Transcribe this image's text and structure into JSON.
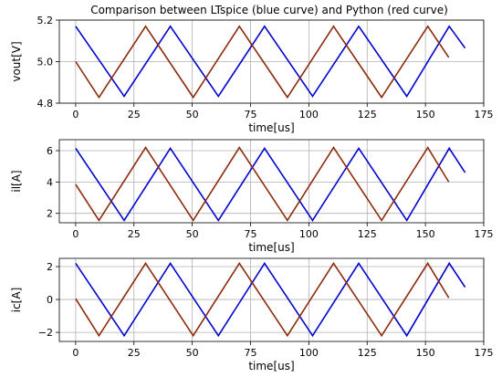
{
  "colors": {
    "ltspice": "#0000cc",
    "python": "#8b2a0a",
    "python_peak": "#d42020"
  },
  "chart_data": [
    {
      "type": "line",
      "title": "Comparison between LTspice (blue curve) and Python (red curve)",
      "xlabel": "time[us]",
      "ylabel": "vout[V]",
      "xlim": [
        -7,
        175
      ],
      "ylim": [
        4.8,
        5.2
      ],
      "xticks": [
        0,
        25,
        50,
        75,
        100,
        125,
        150,
        175
      ],
      "xtick_labels": [
        "0",
        "25",
        "50",
        "75",
        "100",
        "125",
        "150",
        "175"
      ],
      "yticks": [
        4.8,
        5.0,
        5.2
      ],
      "ytick_labels": [
        "4.8",
        "5.0",
        "5.2"
      ],
      "grid": true,
      "series": [
        {
          "color": "#0000cc",
          "x": [
            0,
            20.8,
            40.6,
            61.2,
            81,
            101.6,
            121.4,
            142,
            160.2,
            167
          ],
          "y": [
            5.17,
            4.833,
            5.17,
            4.833,
            5.17,
            4.833,
            5.17,
            4.833,
            5.17,
            5.065
          ]
        },
        {
          "color": "#8b2a0a",
          "x": [
            0,
            10,
            30,
            50.4,
            70.2,
            90.8,
            110.6,
            131.2,
            151,
            160
          ],
          "y": [
            5.0,
            4.828,
            5.17,
            4.828,
            5.17,
            4.828,
            5.17,
            4.828,
            5.17,
            5.02
          ]
        }
      ]
    },
    {
      "type": "line",
      "xlabel": "time[us]",
      "ylabel": "il[A]",
      "xlim": [
        -7,
        175
      ],
      "ylim": [
        1.4,
        6.7
      ],
      "xticks": [
        0,
        25,
        50,
        75,
        100,
        125,
        150,
        175
      ],
      "xtick_labels": [
        "0",
        "25",
        "50",
        "75",
        "100",
        "125",
        "150",
        "175"
      ],
      "yticks": [
        2,
        4,
        6
      ],
      "ytick_labels": [
        "2",
        "4",
        "6"
      ],
      "grid": true,
      "series": [
        {
          "color": "#0000cc",
          "x": [
            0,
            20.8,
            40.6,
            61.2,
            81,
            101.6,
            121.4,
            142,
            160.2,
            167
          ],
          "y": [
            6.15,
            1.55,
            6.15,
            1.55,
            6.15,
            1.55,
            6.15,
            1.55,
            6.15,
            4.6
          ]
        },
        {
          "color": "#8b2a0a",
          "x": [
            0,
            10,
            30,
            50.4,
            70.2,
            90.8,
            110.6,
            131.2,
            151,
            160
          ],
          "y": [
            3.85,
            1.55,
            6.2,
            1.55,
            6.2,
            1.55,
            6.2,
            1.55,
            6.2,
            4.0
          ]
        }
      ]
    },
    {
      "type": "line",
      "xlabel": "time[us]",
      "ylabel": "ic[A]",
      "xlim": [
        -7,
        175
      ],
      "ylim": [
        -2.55,
        2.5
      ],
      "xticks": [
        0,
        25,
        50,
        75,
        100,
        125,
        150,
        175
      ],
      "xtick_labels": [
        "0",
        "25",
        "50",
        "75",
        "100",
        "125",
        "150",
        "175"
      ],
      "yticks": [
        -2,
        0,
        2
      ],
      "ytick_labels": [
        "−2",
        "0",
        "2"
      ],
      "grid": true,
      "series": [
        {
          "color": "#0000cc",
          "x": [
            0,
            20.8,
            40.6,
            61.2,
            81,
            101.6,
            121.4,
            142,
            160.2,
            167
          ],
          "y": [
            2.2,
            -2.2,
            2.2,
            -2.2,
            2.2,
            -2.2,
            2.2,
            -2.2,
            2.2,
            0.75
          ]
        },
        {
          "color": "#8b2a0a",
          "x": [
            0,
            10,
            30,
            50.4,
            70.2,
            90.8,
            110.6,
            131.2,
            151,
            160
          ],
          "y": [
            0.05,
            -2.2,
            2.2,
            -2.2,
            2.2,
            -2.2,
            2.2,
            -2.2,
            2.2,
            0.1
          ]
        }
      ]
    }
  ]
}
